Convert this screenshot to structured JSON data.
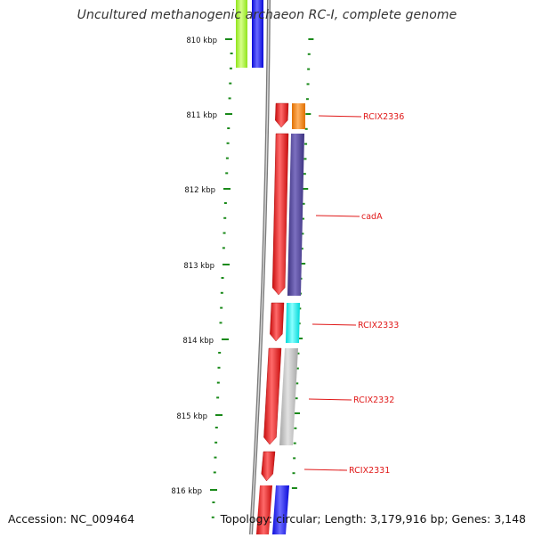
{
  "title": "Uncultured methanogenic archaeon RC-I, complete genome",
  "footer": {
    "accession": "Accession: NC_009464",
    "summary": "Topology: circular; Length: 3,179,916 bp; Genes: 3,148"
  },
  "ruler": {
    "labels": [
      "810 kbp",
      "811 kbp",
      "812 kbp",
      "813 kbp",
      "814 kbp",
      "815 kbp",
      "816 kbp"
    ],
    "color": "#1a8a1a"
  },
  "genes": [
    {
      "label": "RCIX2336",
      "color": "#e01818"
    },
    {
      "label": "cadA",
      "color": "#e01818"
    },
    {
      "label": "RCIX2333",
      "color": "#e01818"
    },
    {
      "label": "RCIX2332",
      "color": "#e01818"
    },
    {
      "label": "RCIX2331",
      "color": "#e01818"
    }
  ],
  "colors": {
    "forward_strand": "#e31a1a",
    "lime": "#a6ff2a",
    "blue": "#1010ff",
    "orange": "#ff8a00",
    "purple": "#4b3f8f",
    "cyan": "#00f0f0",
    "gray": "#bdbdbd",
    "backbone": "#7a7a7a"
  }
}
